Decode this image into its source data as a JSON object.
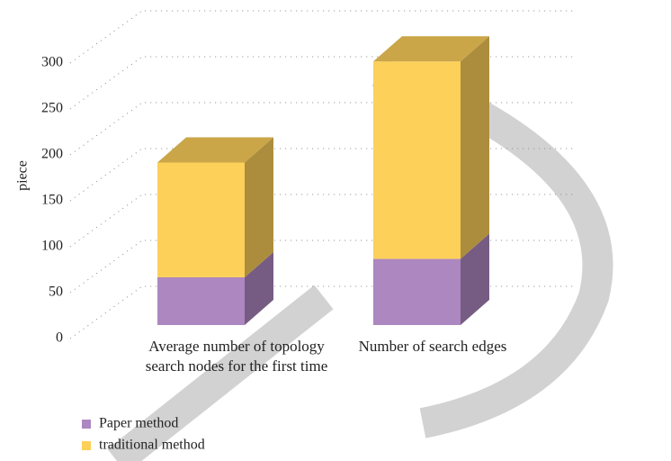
{
  "chart_data": {
    "type": "bar3d_stacked",
    "y_label": "piece",
    "categories": [
      "Average number of topology search nodes for the first time",
      "Number of search edges"
    ],
    "series": [
      {
        "name": "Paper method",
        "color": "#ad87c0",
        "values": [
          52,
          72
        ]
      },
      {
        "name": "traditional method",
        "color": "#fdd05a",
        "values": [
          125,
          215
        ]
      }
    ],
    "ylim": [
      0,
      300
    ],
    "yticks": [
      0,
      50,
      100,
      150,
      200,
      250,
      300
    ],
    "grid": true
  }
}
